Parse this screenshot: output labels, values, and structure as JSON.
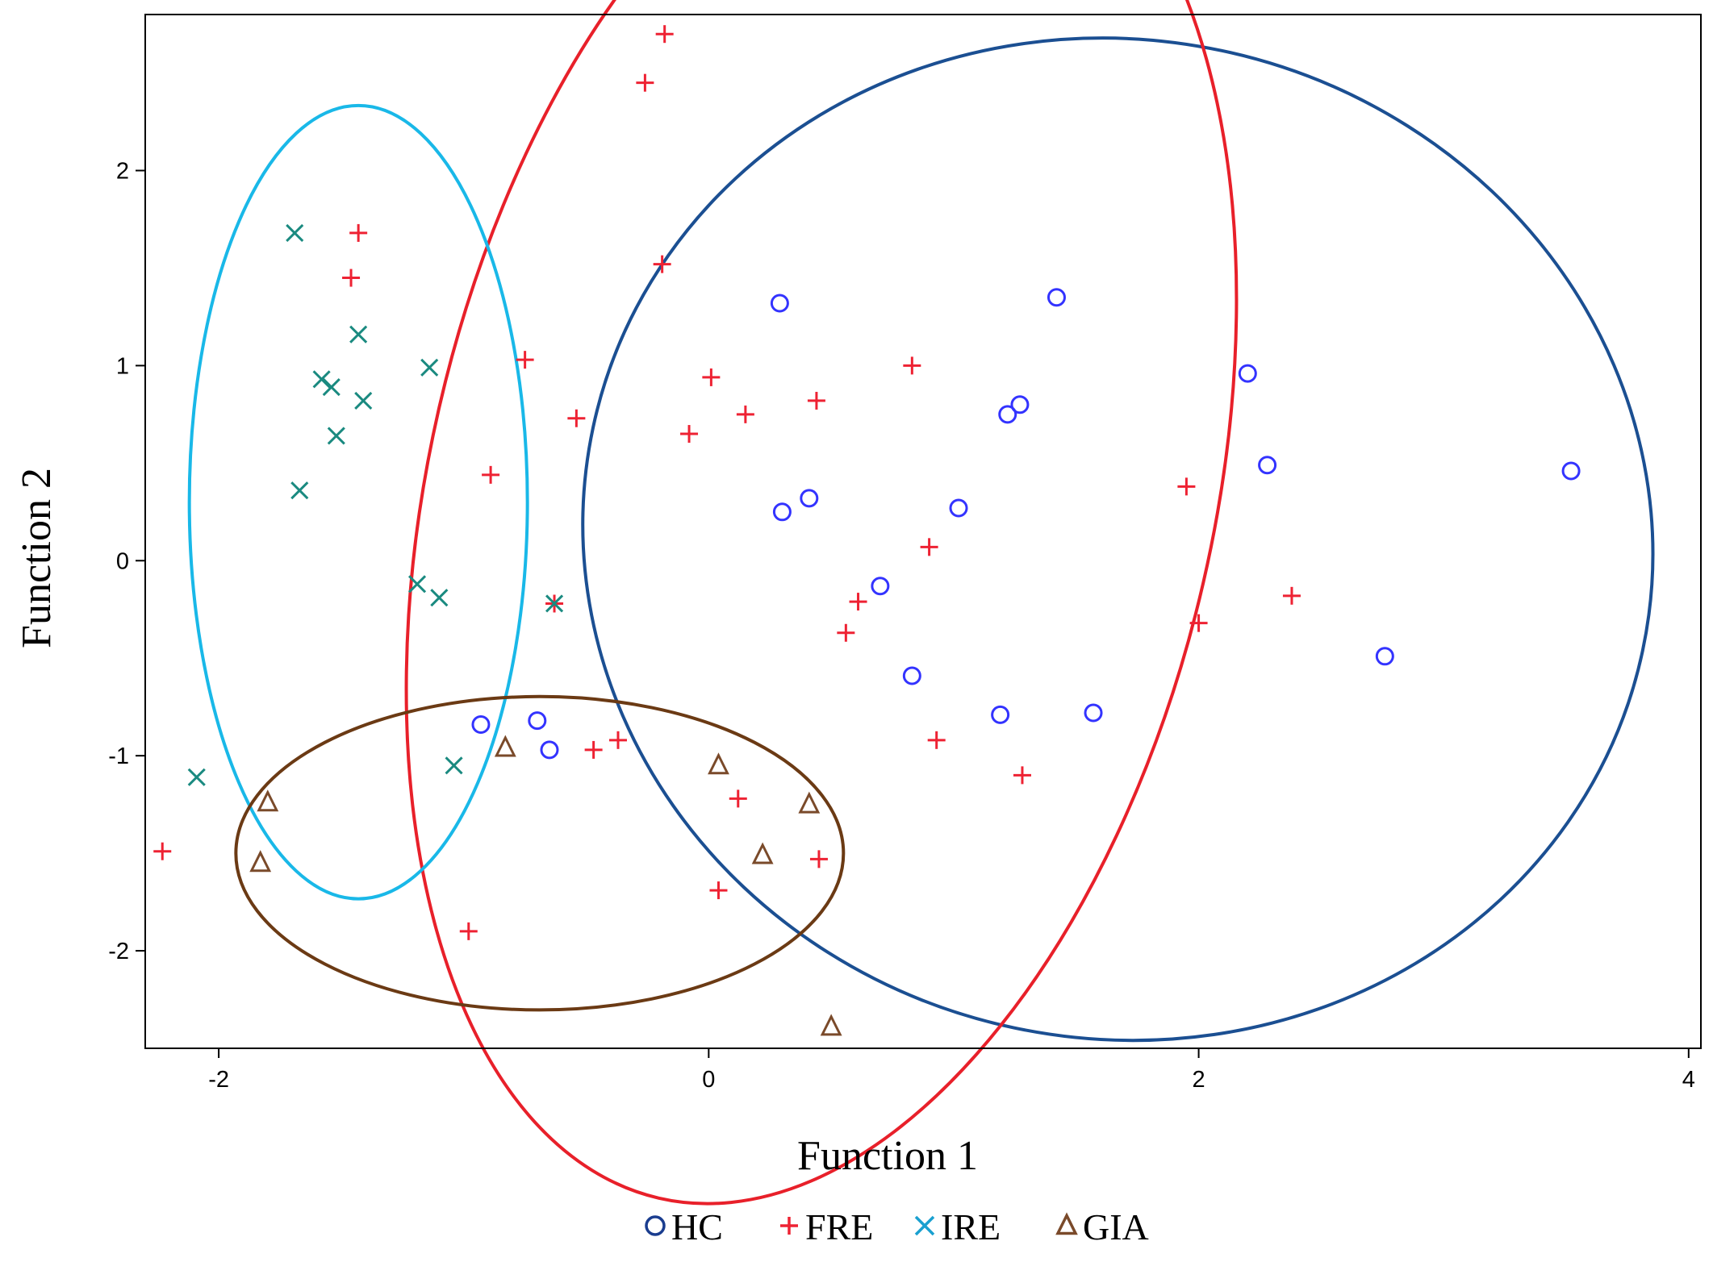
{
  "chart_data": {
    "type": "scatter",
    "title": "",
    "xlabel": "Function 1",
    "ylabel": "Function 2",
    "xlim": [
      -2.3,
      4.05
    ],
    "ylim": [
      -2.5,
      2.8
    ],
    "x_ticks": [
      -2,
      0,
      2,
      4
    ],
    "x_tick_labels": [
      "-2",
      "0",
      "2",
      "4"
    ],
    "y_ticks": [
      -2,
      -1,
      0,
      1,
      2
    ],
    "y_tick_labels": [
      "-2",
      "-1",
      "0",
      "1",
      "2"
    ],
    "grid": false,
    "legend_position": "bottom",
    "series": [
      {
        "name": "HC",
        "marker": "circle",
        "color": "#3333ff",
        "legend_color": "#1a3d8f",
        "points": [
          [
            0.29,
            1.32
          ],
          [
            1.42,
            1.35
          ],
          [
            2.2,
            0.96
          ],
          [
            1.27,
            0.8
          ],
          [
            1.22,
            0.75
          ],
          [
            2.28,
            0.49
          ],
          [
            3.52,
            0.46
          ],
          [
            0.3,
            0.25
          ],
          [
            0.41,
            0.32
          ],
          [
            1.02,
            0.27
          ],
          [
            0.7,
            -0.13
          ],
          [
            0.83,
            -0.59
          ],
          [
            1.19,
            -0.79
          ],
          [
            1.57,
            -0.78
          ],
          [
            2.76,
            -0.49
          ],
          [
            -0.93,
            -0.84
          ],
          [
            -0.7,
            -0.82
          ],
          [
            -0.65,
            -0.97
          ]
        ]
      },
      {
        "name": "FRE",
        "marker": "plus",
        "color": "#ee2233",
        "legend_color": "#ee2233",
        "points": [
          [
            -0.18,
            2.7
          ],
          [
            -0.26,
            2.45
          ],
          [
            -1.43,
            1.68
          ],
          [
            -1.46,
            1.45
          ],
          [
            -0.19,
            1.52
          ],
          [
            -0.75,
            1.03
          ],
          [
            0.01,
            0.94
          ],
          [
            0.83,
            1.0
          ],
          [
            0.44,
            0.82
          ],
          [
            0.15,
            0.75
          ],
          [
            -0.54,
            0.73
          ],
          [
            -0.08,
            0.65
          ],
          [
            -0.89,
            0.44
          ],
          [
            1.95,
            0.38
          ],
          [
            0.9,
            0.07
          ],
          [
            0.61,
            -0.21
          ],
          [
            -0.63,
            -0.22
          ],
          [
            0.56,
            -0.37
          ],
          [
            2.38,
            -0.18
          ],
          [
            2.0,
            -0.32
          ],
          [
            0.93,
            -0.92
          ],
          [
            -0.37,
            -0.92
          ],
          [
            -0.47,
            -0.97
          ],
          [
            1.28,
            -1.1
          ],
          [
            0.12,
            -1.22
          ],
          [
            -2.23,
            -1.49
          ],
          [
            0.45,
            -1.53
          ],
          [
            0.04,
            -1.69
          ],
          [
            -0.98,
            -1.9
          ]
        ]
      },
      {
        "name": "IRE",
        "marker": "x",
        "color": "#1a8a80",
        "legend_color": "#1aa0d0",
        "points": [
          [
            -1.69,
            1.68
          ],
          [
            -1.43,
            1.16
          ],
          [
            -1.14,
            0.99
          ],
          [
            -1.58,
            0.93
          ],
          [
            -1.54,
            0.89
          ],
          [
            -1.41,
            0.82
          ],
          [
            -1.52,
            0.64
          ],
          [
            -1.67,
            0.36
          ],
          [
            -1.19,
            -0.12
          ],
          [
            -1.1,
            -0.19
          ],
          [
            -0.63,
            -0.22
          ],
          [
            -2.09,
            -1.11
          ],
          [
            -1.04,
            -1.05
          ]
        ]
      },
      {
        "name": "GIA",
        "marker": "triangle",
        "color": "#7a4a2a",
        "legend_color": "#7a4a2a",
        "points": [
          [
            -1.8,
            -1.24
          ],
          [
            -1.83,
            -1.55
          ],
          [
            -0.83,
            -0.96
          ],
          [
            0.04,
            -1.05
          ],
          [
            0.41,
            -1.25
          ],
          [
            0.22,
            -1.51
          ],
          [
            0.5,
            -2.39
          ]
        ]
      }
    ],
    "ellipses": [
      {
        "group": "HC",
        "color": "#1b4f92",
        "center": [
          1.67,
          0.11
        ],
        "radii": [
          2.19,
          2.04
        ],
        "rotation_deg": -12
      },
      {
        "group": "FRE",
        "color": "#e8202a",
        "center": [
          0.46,
          0.34
        ],
        "radii": [
          2.95,
          1.6
        ],
        "rotation_deg": 77
      },
      {
        "group": "IRE",
        "color": "#19b8e8",
        "center": [
          -1.43,
          0.3
        ],
        "radii": [
          0.69,
          1.62
        ],
        "rotation_deg": 0
      },
      {
        "group": "GIA",
        "color": "#6b3a14",
        "center": [
          -0.69,
          -1.5
        ],
        "radii": [
          1.24,
          0.64
        ],
        "rotation_deg": 0
      }
    ]
  }
}
